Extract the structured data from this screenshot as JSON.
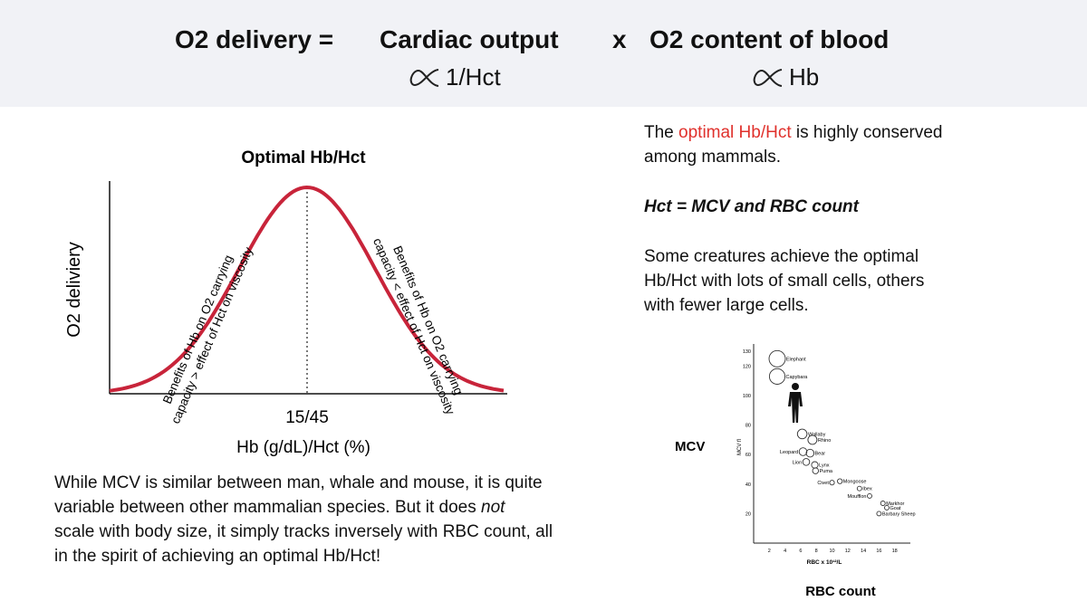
{
  "header": {
    "lhs": "O2 delivery =",
    "term1": "Cardiac output",
    "times": "x",
    "term2": "O2 content of blood",
    "prop1": "1/Hct",
    "prop2": "Hb"
  },
  "bell_chart": {
    "title": "Optimal Hb/Hct",
    "ylabel": "O2 deliviery",
    "xlabel": "Hb (g/dL)/Hct (%)",
    "peak_label": "15/45",
    "left_note_line1": "Benefits of Hb on O2 carrying",
    "left_note_line2": "capacity > effect of Hct on viscosity",
    "right_note_line1": "Benefits of Hb on O2 carrying",
    "right_note_line2": "capacity < effect of  Hct on viscosity",
    "curve_color": "#c8243a"
  },
  "left_paragraph": {
    "line1": "While MCV is similar between man, whale and mouse, it is quite",
    "line2a": "variable between other mammalian species. But it does ",
    "line2b": "not",
    "line3": "scale with body size, it simply tracks inversely with RBC count, all",
    "line4": "in the spirit of achieving an optimal Hb/Hct!"
  },
  "right_text": {
    "p1a": "The ",
    "p1b": "optimal Hb/Hct",
    "p1c": " is highly conserved",
    "p1d": "among mammals.",
    "p2": "Hct = MCV and RBC count",
    "p3a": "Some creatures achieve the optimal",
    "p3b": "Hb/Hct with lots of small cells, others",
    "p3c": "with fewer large cells.",
    "accent": "#e0312c"
  },
  "scatter": {
    "ylabel_big": "MCV",
    "ylabel_small": "MCV fl",
    "xlabel_small": "RBC x 10¹²/L",
    "xlabel_big": "RBC count",
    "yticks": [
      "130",
      "120",
      "100",
      "80",
      "60",
      "40",
      "20"
    ],
    "xticks": [
      "2",
      "4",
      "6",
      "8",
      "10",
      "12",
      "14",
      "16",
      "18"
    ]
  },
  "chart_data": {
    "type": "scatter",
    "xlabel": "RBC x 10¹²/L",
    "ylabel": "MCV fl",
    "xlim": [
      0,
      20
    ],
    "ylim": [
      0,
      135
    ],
    "points": [
      {
        "label": "Elephant",
        "x": 3,
        "y": 125
      },
      {
        "label": "Capybara",
        "x": 3,
        "y": 113
      },
      {
        "label": "Wallaby",
        "x": 6.2,
        "y": 74
      },
      {
        "label": "Rhino",
        "x": 7.5,
        "y": 70
      },
      {
        "label": "Leopard",
        "x": 6.3,
        "y": 62
      },
      {
        "label": "Bear",
        "x": 7.2,
        "y": 61
      },
      {
        "label": "Lion",
        "x": 6.7,
        "y": 55
      },
      {
        "label": "Lynx",
        "x": 7.8,
        "y": 53
      },
      {
        "label": "Puma",
        "x": 7.9,
        "y": 49
      },
      {
        "label": "Civet",
        "x": 10,
        "y": 41
      },
      {
        "label": "Mongoose",
        "x": 11,
        "y": 42
      },
      {
        "label": "Ibex",
        "x": 13.5,
        "y": 37
      },
      {
        "label": "Moufflon",
        "x": 14.8,
        "y": 32
      },
      {
        "label": "Markhor",
        "x": 16.5,
        "y": 27
      },
      {
        "label": "Goat",
        "x": 17,
        "y": 24
      },
      {
        "label": "Barbary Sheep",
        "x": 16,
        "y": 20
      }
    ]
  }
}
